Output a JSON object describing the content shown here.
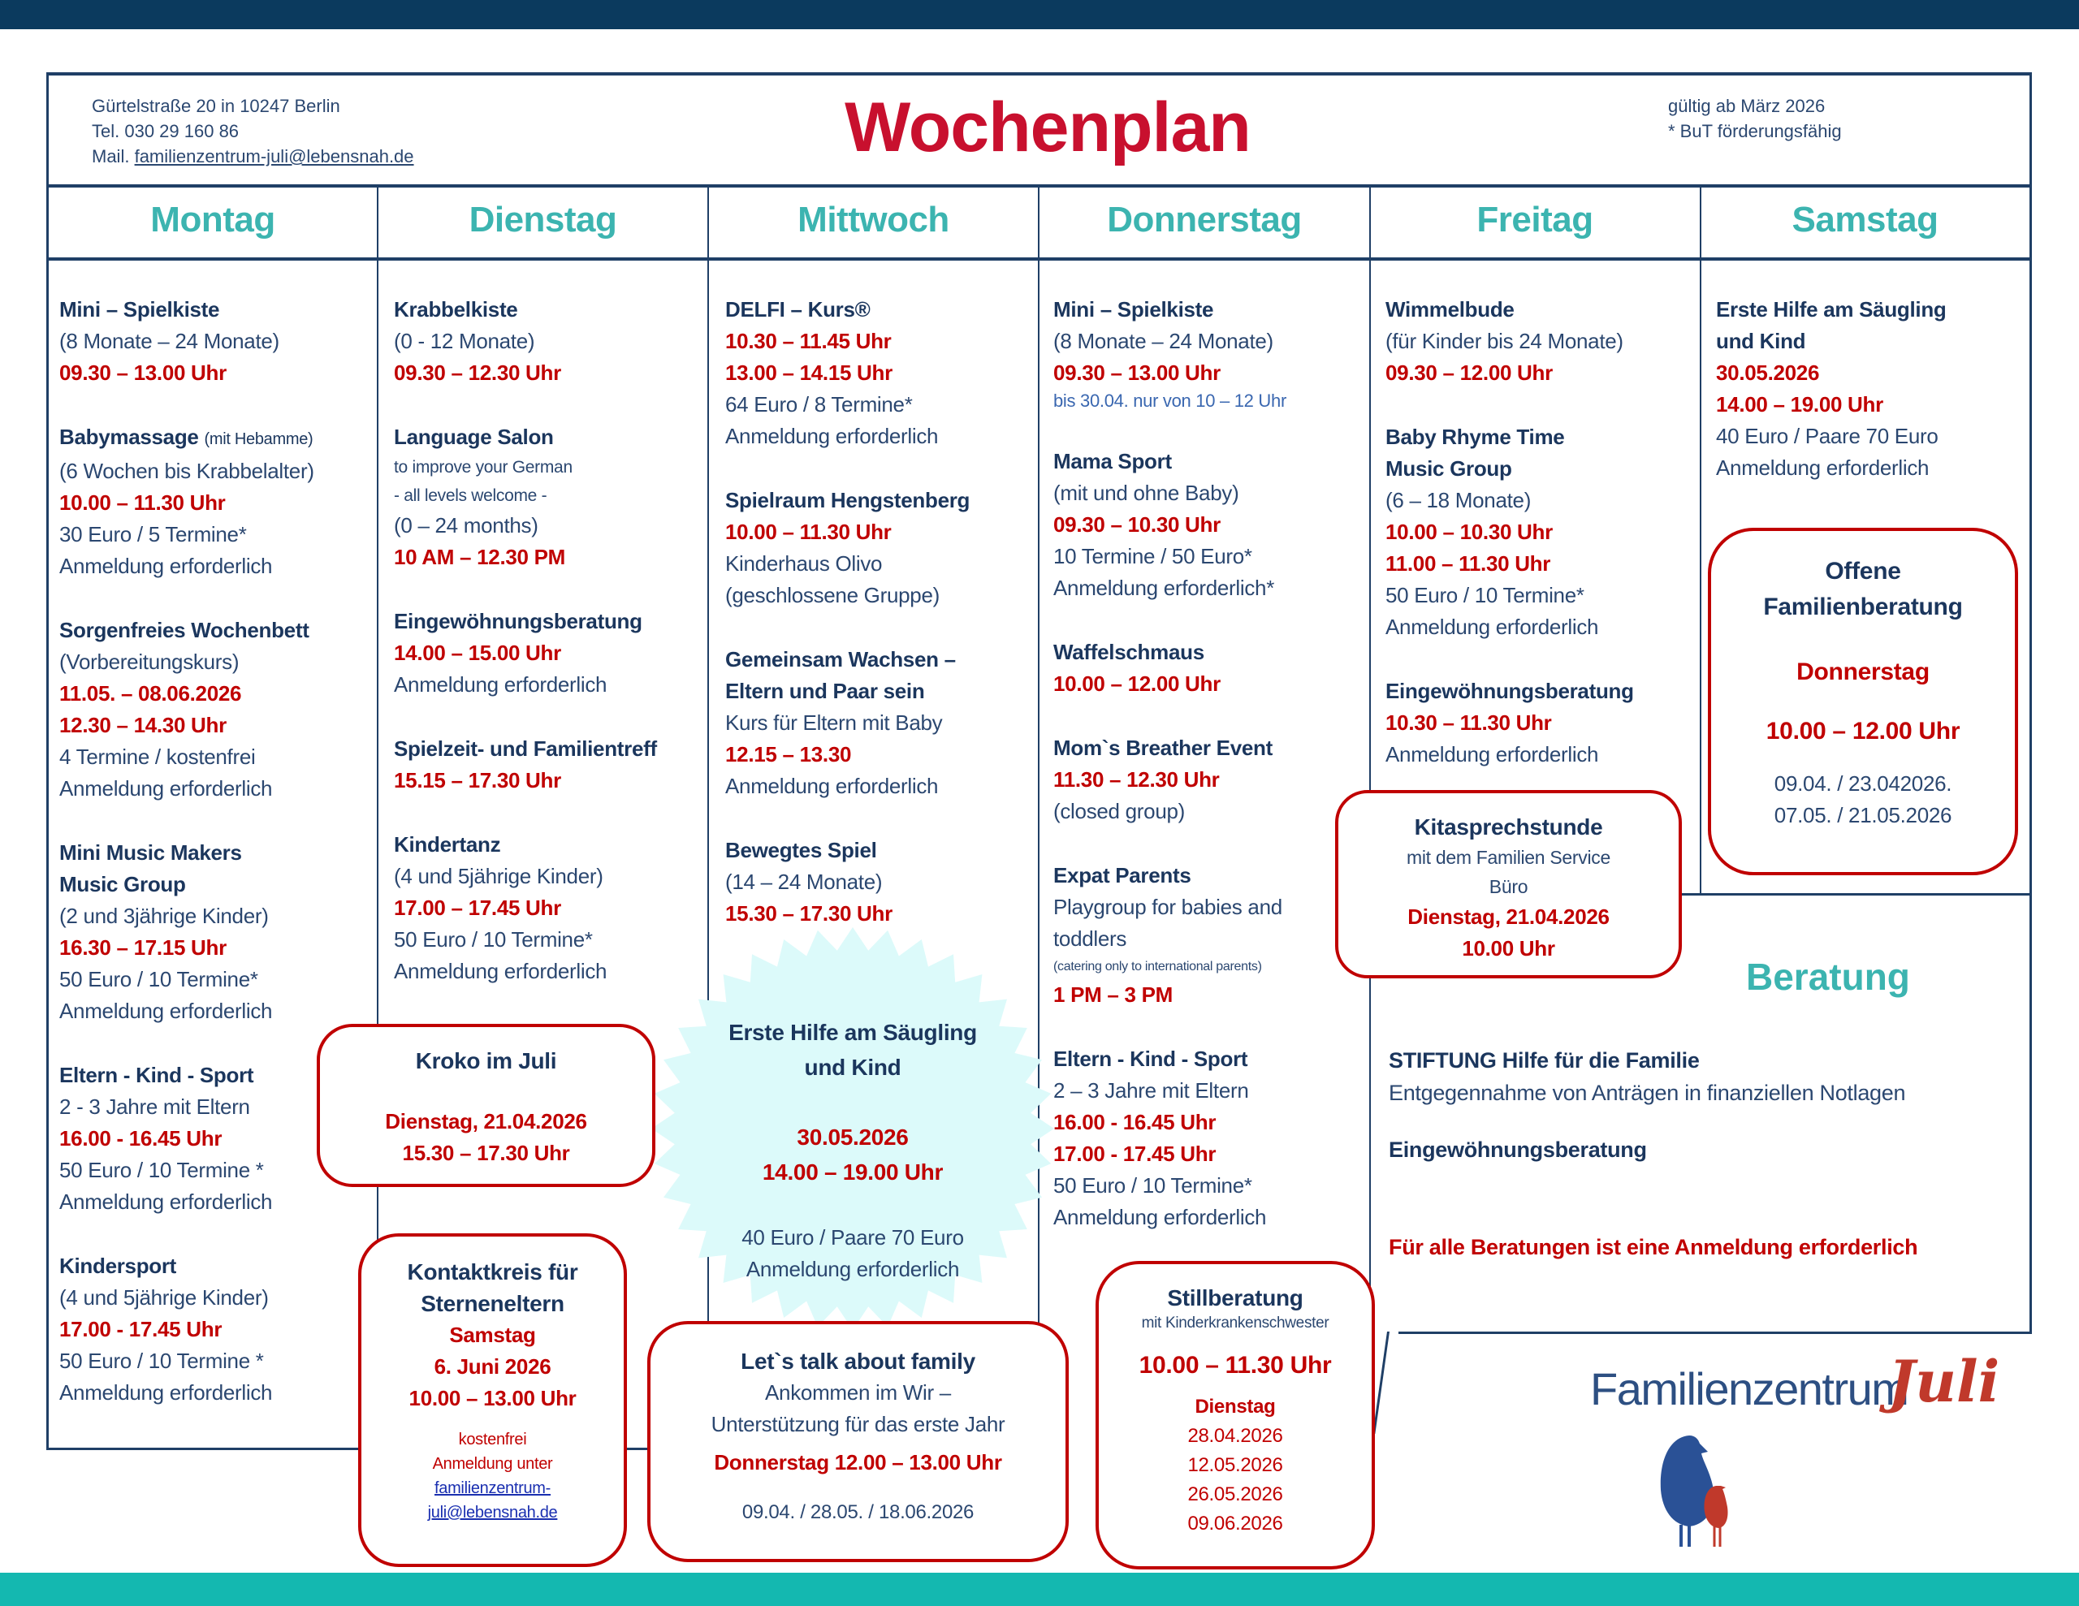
{
  "header": {
    "address": "Gürtelstraße 20 in 10247 Berlin",
    "phone": "Tel. 030 29 160 86",
    "mail_label": "Mail.",
    "mail": "familienzentrum-juli@lebensnah.de",
    "title": "Wochenplan",
    "valid": "gültig ab März 2026",
    "but_note": "* BuT förderungsfähig"
  },
  "colors": {
    "accent_red": "#c00000",
    "title_red": "#c8102e",
    "teal": "#3cb4b0",
    "navy": "#1b365d",
    "top_bar": "#0b3a5e",
    "bottom_bar": "#14b8b0",
    "starburst": "#dcfafa"
  },
  "days": [
    {
      "name": "Montag",
      "entries": [
        {
          "lines": [
            {
              "t": "Mini – Spielkiste",
              "s": "title"
            },
            {
              "t": "(8 Monate – 24 Monate)",
              "s": "text"
            },
            {
              "t": "09.30 – 13.00 Uhr",
              "s": "time"
            }
          ]
        },
        {
          "lines": [
            {
              "t": "Babymassage",
              "s": "title",
              "note": "(mit Hebamme)"
            },
            {
              "t": "(6 Wochen bis Krabbelalter)",
              "s": "text"
            },
            {
              "t": "10.00 – 11.30 Uhr",
              "s": "time"
            },
            {
              "t": "30 Euro / 5 Termine*",
              "s": "text"
            },
            {
              "t": "Anmeldung erforderlich",
              "s": "text"
            }
          ]
        },
        {
          "lines": [
            {
              "t": "Sorgenfreies Wochenbett",
              "s": "title"
            },
            {
              "t": "(Vorbereitungskurs)",
              "s": "text"
            },
            {
              "t": "11.05. – 08.06.2026",
              "s": "time"
            },
            {
              "t": "12.30 – 14.30 Uhr",
              "s": "time"
            },
            {
              "t": "4 Termine / kostenfrei",
              "s": "text"
            },
            {
              "t": "Anmeldung erforderlich",
              "s": "text"
            }
          ]
        },
        {
          "lines": [
            {
              "t": "Mini Music Makers",
              "s": "title"
            },
            {
              "t": "Music Group",
              "s": "title"
            },
            {
              "t": "(2 und 3jährige Kinder)",
              "s": "text"
            },
            {
              "t": "16.30 – 17.15 Uhr",
              "s": "time"
            },
            {
              "t": "50 Euro / 10 Termine*",
              "s": "text"
            },
            {
              "t": "Anmeldung erforderlich",
              "s": "text"
            }
          ]
        },
        {
          "lines": [
            {
              "t": "Eltern - Kind - Sport",
              "s": "title"
            },
            {
              "t": "2 - 3 Jahre mit Eltern",
              "s": "text"
            },
            {
              "t": "16.00 - 16.45 Uhr",
              "s": "time"
            },
            {
              "t": "50 Euro / 10 Termine *",
              "s": "text"
            },
            {
              "t": "Anmeldung erforderlich",
              "s": "text"
            }
          ]
        },
        {
          "lines": [
            {
              "t": "Kindersport",
              "s": "title"
            },
            {
              "t": "(4 und 5jährige Kinder)",
              "s": "text"
            },
            {
              "t": "17.00 - 17.45 Uhr",
              "s": "time"
            },
            {
              "t": "50 Euro / 10 Termine *",
              "s": "text"
            },
            {
              "t": "Anmeldung erforderlich",
              "s": "text"
            }
          ]
        }
      ]
    },
    {
      "name": "Dienstag",
      "entries": [
        {
          "lines": [
            {
              "t": "Krabbelkiste",
              "s": "title"
            },
            {
              "t": "(0 - 12 Monate)",
              "s": "text"
            },
            {
              "t": "09.30 – 12.30 Uhr",
              "s": "time"
            }
          ]
        },
        {
          "lines": [
            {
              "t": "Language Salon",
              "s": "title"
            },
            {
              "t": "to improve your German",
              "s": "small"
            },
            {
              "t": "- all levels welcome -",
              "s": "small"
            },
            {
              "t": "(0 – 24 months)",
              "s": "text"
            },
            {
              "t": "10 AM – 12.30 PM",
              "s": "time"
            }
          ]
        },
        {
          "lines": [
            {
              "t": "Eingewöhnungsberatung",
              "s": "title"
            },
            {
              "t": "14.00 – 15.00 Uhr",
              "s": "time"
            },
            {
              "t": "Anmeldung erforderlich",
              "s": "text"
            }
          ]
        },
        {
          "lines": [
            {
              "t": "Spielzeit- und Familientreff",
              "s": "title"
            },
            {
              "t": "15.15 – 17.30 Uhr",
              "s": "time"
            }
          ]
        },
        {
          "lines": [
            {
              "t": "Kindertanz",
              "s": "title"
            },
            {
              "t": "(4 und 5jährige Kinder)",
              "s": "text"
            },
            {
              "t": "17.00 – 17.45 Uhr",
              "s": "time"
            },
            {
              "t": "50 Euro / 10 Termine*",
              "s": "text"
            },
            {
              "t": "Anmeldung erforderlich",
              "s": "text"
            }
          ]
        }
      ]
    },
    {
      "name": "Mittwoch",
      "entries": [
        {
          "lines": [
            {
              "t": "DELFI – Kurs®",
              "s": "title"
            },
            {
              "t": "10.30 – 11.45 Uhr",
              "s": "time"
            },
            {
              "t": "13.00 – 14.15 Uhr",
              "s": "time"
            },
            {
              "t": "64 Euro / 8 Termine*",
              "s": "text"
            },
            {
              "t": "Anmeldung erforderlich",
              "s": "text"
            }
          ]
        },
        {
          "lines": [
            {
              "t": "Spielraum Hengstenberg",
              "s": "title"
            },
            {
              "t": "10.00 – 11.30 Uhr",
              "s": "time"
            },
            {
              "t": "Kinderhaus Olivo",
              "s": "text"
            },
            {
              "t": "(geschlossene Gruppe)",
              "s": "text"
            }
          ]
        },
        {
          "lines": [
            {
              "t": "Gemeinsam Wachsen –",
              "s": "title"
            },
            {
              "t": "Eltern und Paar sein",
              "s": "title"
            },
            {
              "t": "Kurs für Eltern mit Baby",
              "s": "text"
            },
            {
              "t": "12.15 – 13.30",
              "s": "time"
            },
            {
              "t": "Anmeldung erforderlich",
              "s": "text"
            }
          ]
        },
        {
          "lines": [
            {
              "t": "Bewegtes Spiel",
              "s": "title"
            },
            {
              "t": "(14 – 24 Monate)",
              "s": "text"
            },
            {
              "t": "15.30 – 17.30 Uhr",
              "s": "time"
            }
          ]
        }
      ]
    },
    {
      "name": "Donnerstag",
      "entries": [
        {
          "lines": [
            {
              "t": "Mini – Spielkiste",
              "s": "title"
            },
            {
              "t": "(8 Monate – 24 Monate)",
              "s": "text"
            },
            {
              "t": "09.30 – 13.00 Uhr",
              "s": "time"
            },
            {
              "t": "bis 30.04. nur von 10 – 12 Uhr",
              "s": "blue"
            }
          ]
        },
        {
          "lines": [
            {
              "t": "Mama Sport",
              "s": "title"
            },
            {
              "t": "(mit und ohne Baby)",
              "s": "text"
            },
            {
              "t": "09.30 – 10.30 Uhr",
              "s": "time"
            },
            {
              "t": "10 Termine / 50 Euro*",
              "s": "text"
            },
            {
              "t": "Anmeldung erforderlich*",
              "s": "text"
            }
          ]
        },
        {
          "lines": [
            {
              "t": "Waffelschmaus",
              "s": "title"
            },
            {
              "t": "10.00 – 12.00 Uhr",
              "s": "time"
            }
          ]
        },
        {
          "lines": [
            {
              "t": "Mom`s Breather Event",
              "s": "title"
            },
            {
              "t": "11.30 – 12.30 Uhr",
              "s": "time"
            },
            {
              "t": "(closed group)",
              "s": "text"
            }
          ]
        },
        {
          "lines": [
            {
              "t": "Expat Parents",
              "s": "title"
            },
            {
              "t": "Playgroup for babies and",
              "s": "text"
            },
            {
              "t": "toddlers",
              "s": "text"
            },
            {
              "t": "(catering only to international parents)",
              "s": "tiny"
            },
            {
              "t": "1 PM – 3 PM",
              "s": "time"
            }
          ]
        },
        {
          "lines": [
            {
              "t": "Eltern - Kind - Sport",
              "s": "title"
            },
            {
              "t": "2 – 3 Jahre mit Eltern",
              "s": "text"
            },
            {
              "t": "16.00 - 16.45 Uhr",
              "s": "time"
            },
            {
              "t": "17.00 - 17.45 Uhr",
              "s": "time"
            },
            {
              "t": "50 Euro / 10 Termine*",
              "s": "text"
            },
            {
              "t": "Anmeldung erforderlich",
              "s": "text"
            }
          ]
        }
      ]
    },
    {
      "name": "Freitag",
      "entries": [
        {
          "lines": [
            {
              "t": "Wimmelbude",
              "s": "title"
            },
            {
              "t": "(für Kinder bis 24 Monate)",
              "s": "text"
            },
            {
              "t": "09.30 – 12.00 Uhr",
              "s": "time"
            }
          ]
        },
        {
          "lines": [
            {
              "t": "Baby Rhyme Time",
              "s": "title"
            },
            {
              "t": "Music Group",
              "s": "title"
            },
            {
              "t": "(6 – 18 Monate)",
              "s": "text"
            },
            {
              "t": "10.00 – 10.30 Uhr",
              "s": "time"
            },
            {
              "t": "11.00 – 11.30 Uhr",
              "s": "time"
            },
            {
              "t": "50 Euro / 10 Termine*",
              "s": "text"
            },
            {
              "t": "Anmeldung erforderlich",
              "s": "text"
            }
          ]
        },
        {
          "lines": [
            {
              "t": "Eingewöhnungsberatung",
              "s": "title"
            },
            {
              "t": "10.30 – 11.30 Uhr",
              "s": "time"
            },
            {
              "t": "Anmeldung erforderlich",
              "s": "text"
            }
          ]
        }
      ]
    },
    {
      "name": "Samstag",
      "entries": [
        {
          "lines": [
            {
              "t": "Erste Hilfe am Säugling",
              "s": "title"
            },
            {
              "t": "und Kind",
              "s": "title"
            },
            {
              "t": "30.05.2026",
              "s": "time"
            },
            {
              "t": "14.00 – 19.00 Uhr",
              "s": "time"
            },
            {
              "t": "40 Euro / Paare 70 Euro",
              "s": "text"
            },
            {
              "t": "Anmeldung erforderlich",
              "s": "text"
            }
          ]
        }
      ]
    }
  ],
  "boxes": {
    "kroko": {
      "title": "Kroko im Juli",
      "date": "Dienstag, 21.04.2026",
      "time": "15.30 – 17.30 Uhr"
    },
    "kontaktkreis": {
      "title1": "Kontaktkreis für",
      "title2": "Sterneneltern",
      "day": "Samstag",
      "date": "6. Juni 2026",
      "time": "10.00 – 13.00 Uhr",
      "cost": "kostenfrei",
      "reg": "Anmeldung unter",
      "mail1": "familienzentrum-",
      "mail2": "juli@lebensnah.de"
    },
    "erste_hilfe": {
      "title1": "Erste Hilfe am Säugling",
      "title2": "und Kind",
      "date": "30.05.2026",
      "time": "14.00 – 19.00 Uhr",
      "price": "40 Euro / Paare 70 Euro",
      "reg": "Anmeldung erforderlich"
    },
    "family": {
      "title": "Let`s talk about family",
      "sub1": "Ankommen im Wir –",
      "sub2": "Unterstützung für das erste Jahr",
      "time": "Donnerstag 12.00 – 13.00 Uhr",
      "dates": "09.04. / 28.05. / 18.06.2026"
    },
    "still": {
      "title": "Stillberatung",
      "sub": "mit Kinderkrankenschwester",
      "time": "10.00 – 11.30 Uhr",
      "day": "Dienstag",
      "dates": [
        "28.04.2026",
        "12.05.2026",
        "26.05.2026",
        "09.06.2026"
      ]
    },
    "kita": {
      "title": "Kitasprechstunde",
      "sub1": "mit dem Familien Service",
      "sub2": "Büro",
      "date": "Dienstag, 21.04.2026",
      "time": "10.00 Uhr"
    },
    "offen": {
      "title1": "Offene",
      "title2": "Familienberatung",
      "day": "Donnerstag",
      "time": "10.00 – 12.00 Uhr",
      "dates1": "09.04. / 23.042026.",
      "dates2": "07.05. / 21.05.2026"
    }
  },
  "beratung": {
    "heading": "Beratung",
    "stiftung_title": "STIFTUNG Hilfe für die Familie",
    "stiftung_text": "Entgegennahme von Anträgen in finanziellen Notlagen",
    "eingewoehnung": "Eingewöhnungsberatung",
    "notice": "Für alle Beratungen ist eine Anmeldung erforderlich"
  },
  "logo": {
    "text": "Familienzentrum",
    "script": "Juli",
    "icon": "two-birds-logo"
  }
}
